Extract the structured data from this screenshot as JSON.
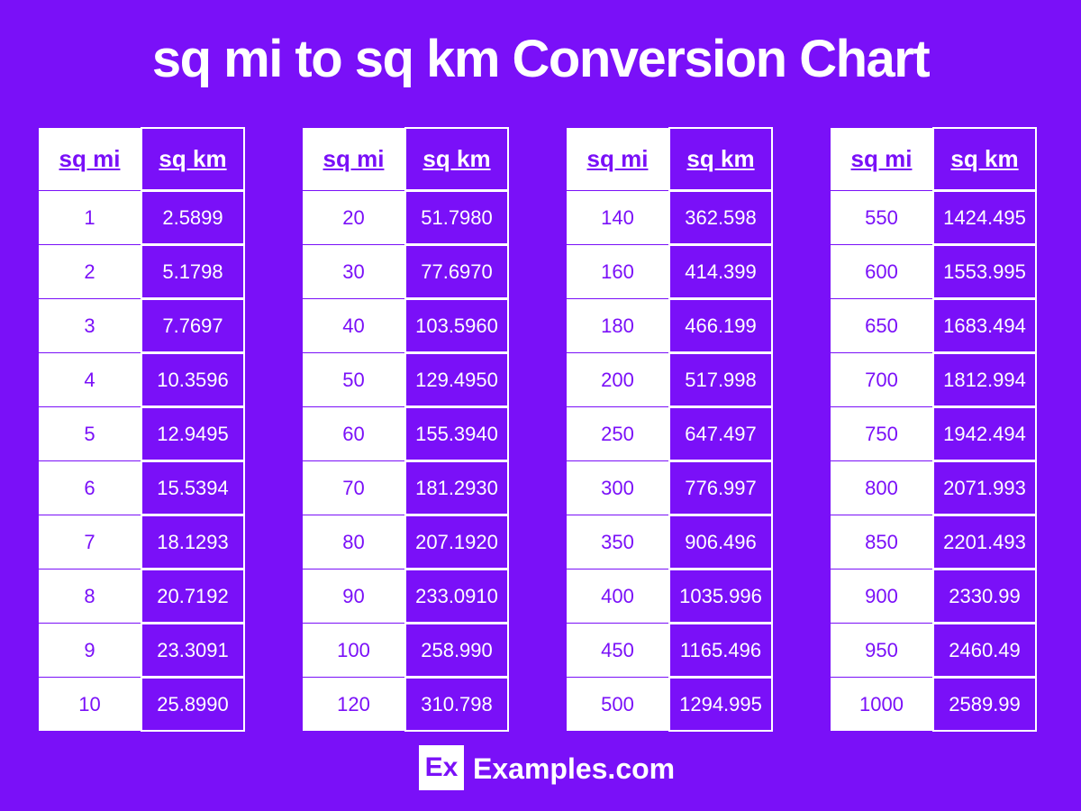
{
  "title": "sq mi to sq km Conversion Chart",
  "tables": [
    {
      "header": [
        "sq mi",
        "sq km"
      ],
      "rows": [
        [
          "1",
          "2.5899"
        ],
        [
          "2",
          "5.1798"
        ],
        [
          "3",
          "7.7697"
        ],
        [
          "4",
          "10.3596"
        ],
        [
          "5",
          "12.9495"
        ],
        [
          "6",
          "15.5394"
        ],
        [
          "7",
          "18.1293"
        ],
        [
          "8",
          "20.7192"
        ],
        [
          "9",
          "23.3091"
        ],
        [
          "10",
          "25.8990"
        ]
      ]
    },
    {
      "header": [
        "sq mi",
        "sq km"
      ],
      "rows": [
        [
          "20",
          "51.7980"
        ],
        [
          "30",
          "77.6970"
        ],
        [
          "40",
          "103.5960"
        ],
        [
          "50",
          "129.4950"
        ],
        [
          "60",
          "155.3940"
        ],
        [
          "70",
          "181.2930"
        ],
        [
          "80",
          "207.1920"
        ],
        [
          "90",
          "233.0910"
        ],
        [
          "100",
          "258.990"
        ],
        [
          "120",
          "310.798"
        ]
      ]
    },
    {
      "header": [
        "sq mi",
        "sq km"
      ],
      "rows": [
        [
          "140",
          "362.598"
        ],
        [
          "160",
          "414.399"
        ],
        [
          "180",
          "466.199"
        ],
        [
          "200",
          "517.998"
        ],
        [
          "250",
          "647.497"
        ],
        [
          "300",
          "776.997"
        ],
        [
          "350",
          "906.496"
        ],
        [
          "400",
          "1035.996"
        ],
        [
          "450",
          "1165.496"
        ],
        [
          "500",
          "1294.995"
        ]
      ]
    },
    {
      "header": [
        "sq mi",
        "sq km"
      ],
      "rows": [
        [
          "550",
          "1424.495"
        ],
        [
          "600",
          "1553.995"
        ],
        [
          "650",
          "1683.494"
        ],
        [
          "700",
          "1812.994"
        ],
        [
          "750",
          "1942.494"
        ],
        [
          "800",
          "2071.993"
        ],
        [
          "850",
          "2201.493"
        ],
        [
          "900",
          "2330.99"
        ],
        [
          "950",
          "2460.49"
        ],
        [
          "1000",
          "2589.99"
        ]
      ]
    }
  ],
  "footer": {
    "logo": "Ex",
    "text": "Examples.com"
  }
}
